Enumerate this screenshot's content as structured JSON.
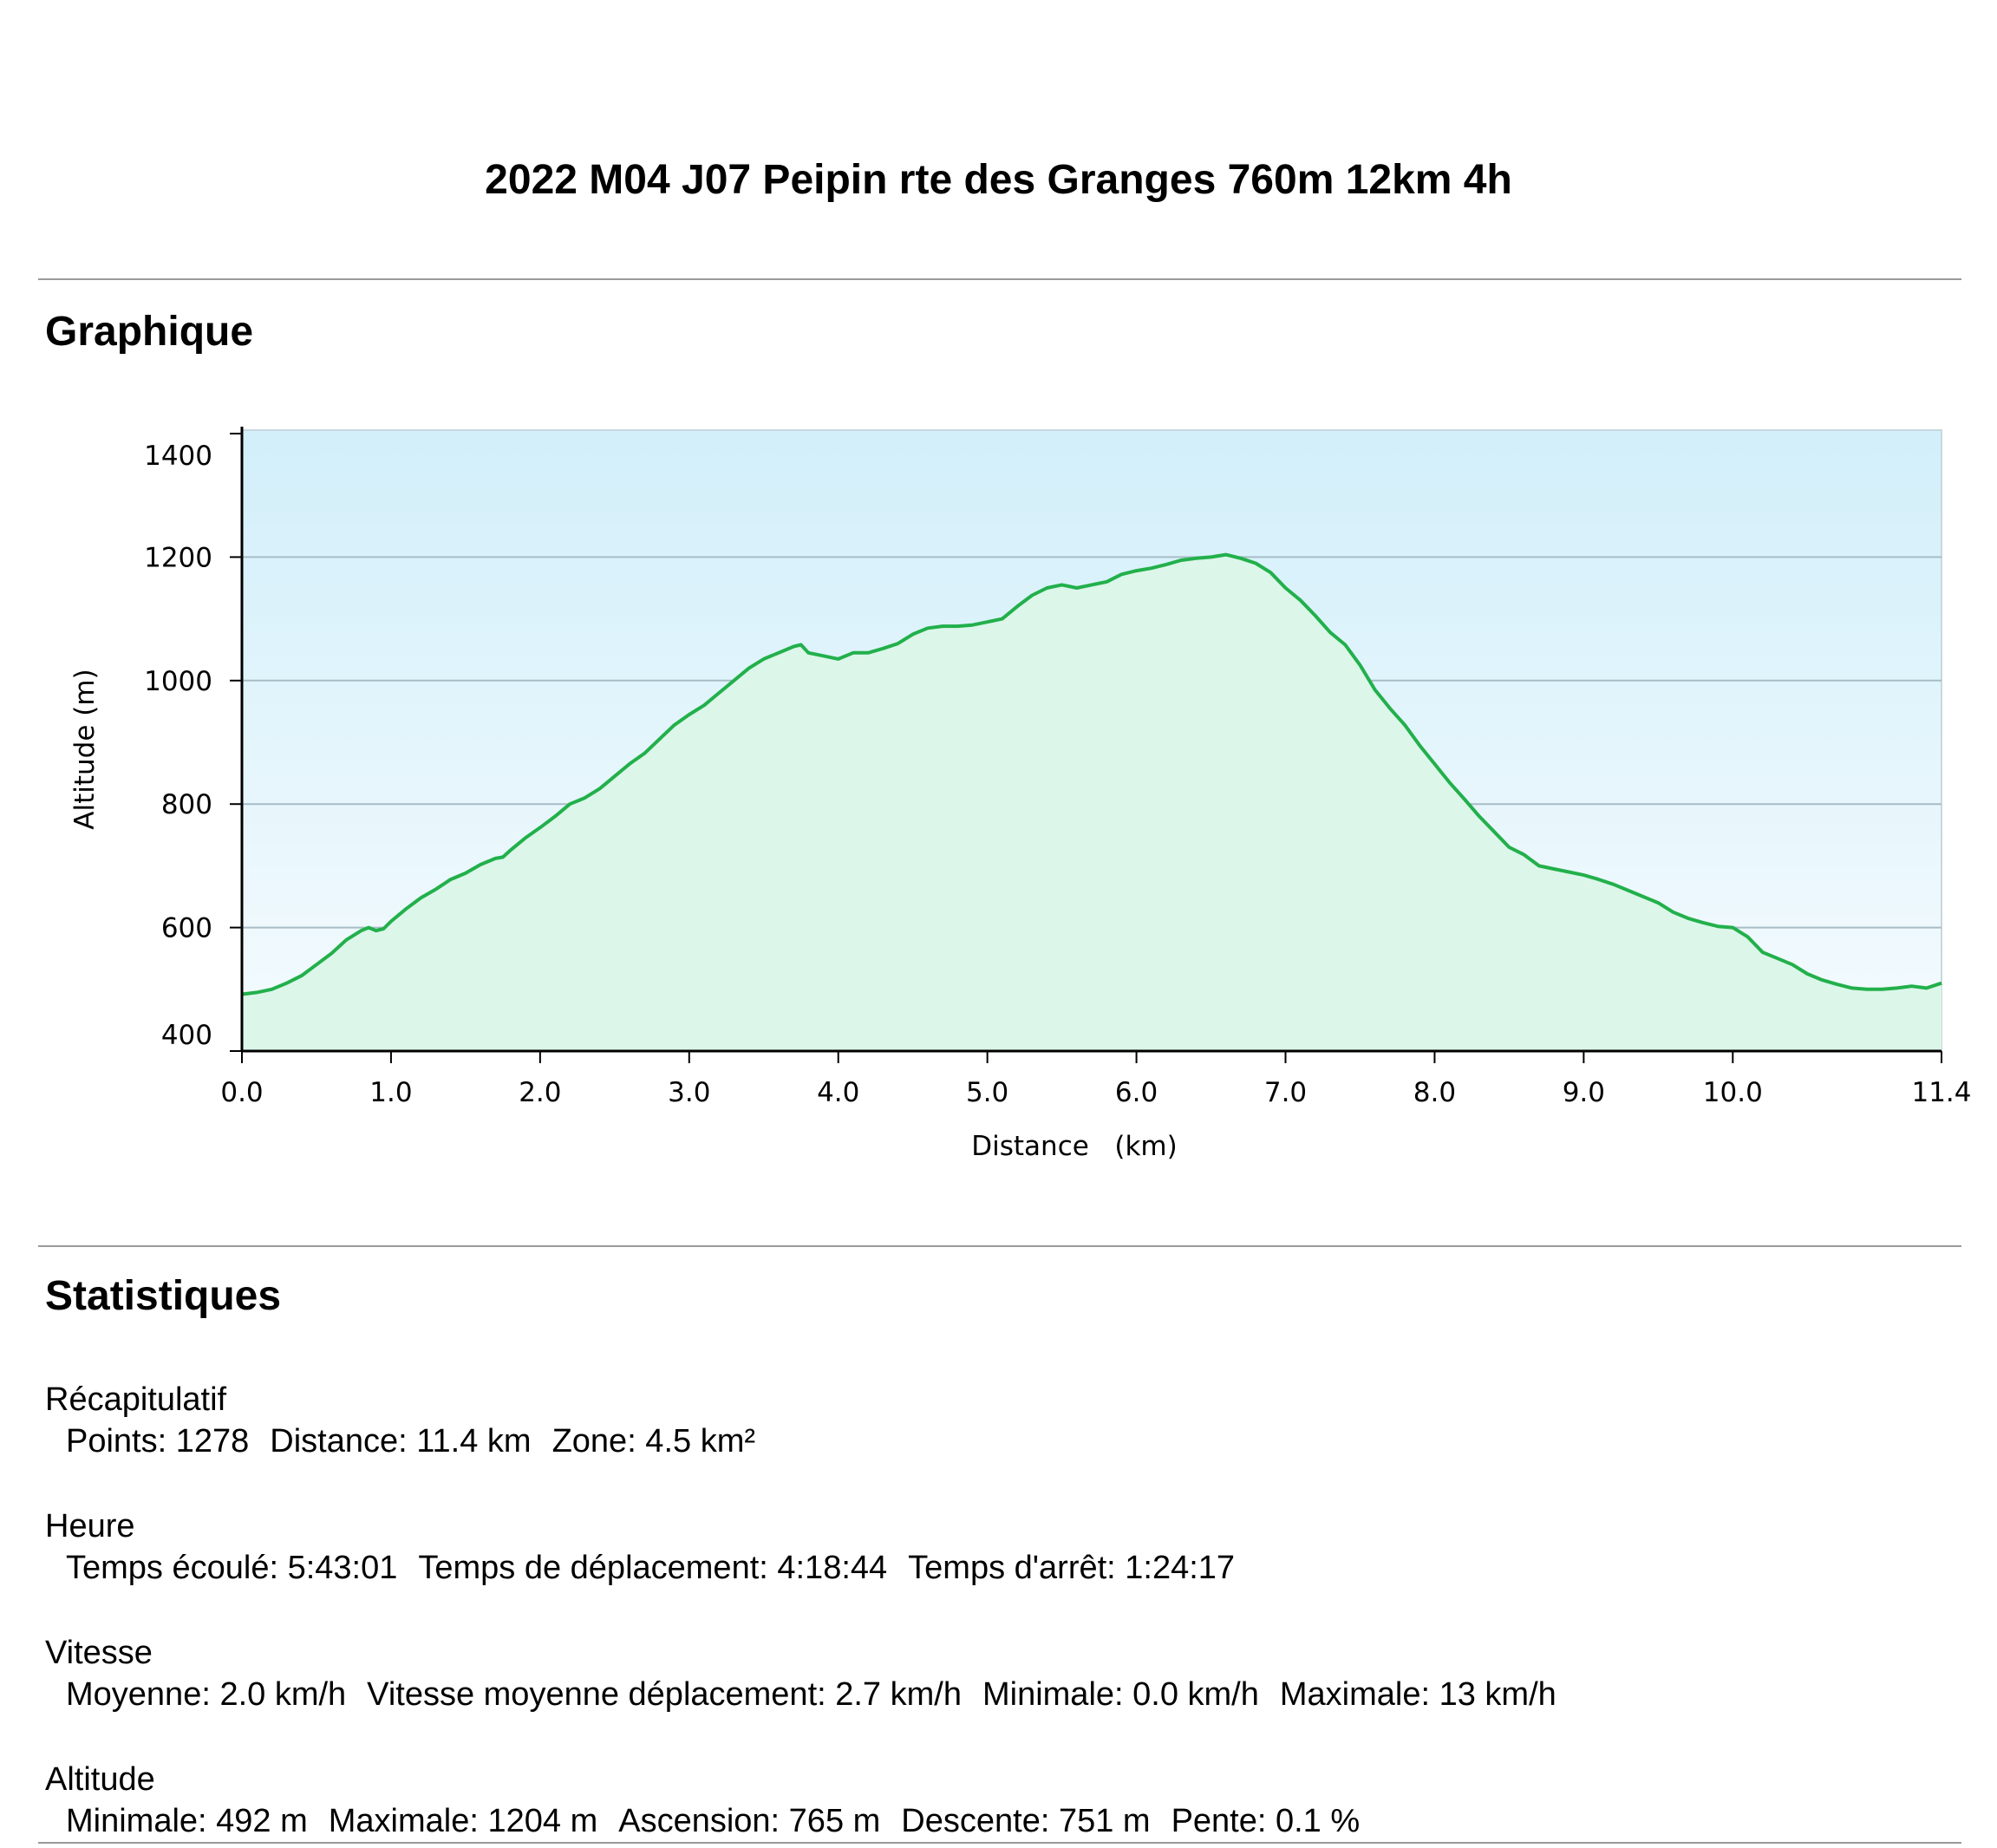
{
  "title": "2022 M04 J07 Peipin rte des Granges 760m 12km 4h",
  "sections": {
    "chart_heading": "Graphique",
    "stats_heading": "Statistiques"
  },
  "colors": {
    "line": "#22b04b",
    "area_fill": "#dcf6ea",
    "sky_top": "#d2effa",
    "sky_bottom": "#f5fbfe",
    "grid": "#a8bcc6"
  },
  "chart_data": {
    "type": "area",
    "title": "",
    "xlabel": "Distance   (km)",
    "ylabel": "Altitude (m)",
    "xlim": [
      0,
      11.4
    ],
    "ylim": [
      400,
      1400
    ],
    "x_ticks": [
      "0.0",
      "1.0",
      "2.0",
      "3.0",
      "4.0",
      "5.0",
      "6.0",
      "7.0",
      "8.0",
      "9.0",
      "10.0",
      "11.4"
    ],
    "y_ticks": [
      "400",
      "600",
      "800",
      "1000",
      "1200",
      "1400"
    ],
    "grid": true,
    "series": [
      {
        "x": [
          0.0,
          0.1,
          0.2,
          0.3,
          0.4,
          0.5,
          0.6,
          0.7,
          0.8,
          0.85,
          0.9,
          0.95,
          1.0,
          1.1,
          1.2,
          1.3,
          1.4,
          1.5,
          1.6,
          1.7,
          1.75,
          1.8,
          1.9,
          2.0,
          2.1,
          2.2,
          2.3,
          2.4,
          2.5,
          2.6,
          2.7,
          2.8,
          2.9,
          3.0,
          3.1,
          3.2,
          3.3,
          3.4,
          3.5,
          3.6,
          3.7,
          3.75,
          3.8,
          3.9,
          4.0,
          4.1,
          4.2,
          4.3,
          4.4,
          4.5,
          4.6,
          4.7,
          4.8,
          4.9,
          5.0,
          5.1,
          5.2,
          5.3,
          5.4,
          5.5,
          5.6,
          5.7,
          5.8,
          5.9,
          6.0,
          6.1,
          6.2,
          6.3,
          6.4,
          6.5,
          6.6,
          6.7,
          6.8,
          6.9,
          7.0,
          7.1,
          7.2,
          7.3,
          7.4,
          7.5,
          7.6,
          7.7,
          7.8,
          7.9,
          8.0,
          8.1,
          8.2,
          8.3,
          8.4,
          8.5,
          8.6,
          8.7,
          8.8,
          8.9,
          9.0,
          9.1,
          9.2,
          9.3,
          9.4,
          9.5,
          9.6,
          9.7,
          9.8,
          9.9,
          10.0,
          10.1,
          10.2,
          10.3,
          10.4,
          10.5,
          10.6,
          10.7,
          10.8,
          10.9,
          11.0,
          11.1,
          11.2,
          11.3,
          11.4
        ],
        "y": [
          492,
          495,
          500,
          510,
          522,
          540,
          558,
          580,
          595,
          600,
          595,
          598,
          610,
          630,
          648,
          662,
          678,
          688,
          702,
          712,
          714,
          725,
          745,
          762,
          780,
          800,
          810,
          825,
          845,
          865,
          882,
          905,
          928,
          945,
          960,
          980,
          1000,
          1020,
          1035,
          1045,
          1055,
          1058,
          1045,
          1040,
          1035,
          1045,
          1045,
          1052,
          1060,
          1075,
          1085,
          1088,
          1088,
          1090,
          1095,
          1100,
          1120,
          1138,
          1150,
          1155,
          1150,
          1155,
          1160,
          1172,
          1178,
          1182,
          1188,
          1195,
          1198,
          1200,
          1204,
          1198,
          1190,
          1175,
          1150,
          1130,
          1105,
          1078,
          1058,
          1025,
          985,
          955,
          928,
          895,
          865,
          835,
          808,
          780,
          755,
          730,
          718,
          700,
          695,
          690,
          685,
          678,
          670,
          660,
          650,
          640,
          625,
          615,
          608,
          602,
          600,
          585,
          560,
          550,
          540,
          525,
          515,
          508,
          502,
          500,
          500,
          502,
          505,
          502,
          510
        ]
      }
    ]
  },
  "stats": {
    "groups": [
      {
        "title": "Récapitulatif",
        "items": [
          "Points: 1278",
          "Distance: 11.4 km",
          "Zone: 4.5 km²"
        ]
      },
      {
        "title": "Heure",
        "items": [
          "Temps écoulé: 5:43:01",
          "Temps de déplacement: 4:18:44",
          "Temps d'arrêt: 1:24:17"
        ]
      },
      {
        "title": "Vitesse",
        "items": [
          "Moyenne: 2.0 km/h",
          "Vitesse moyenne déplacement: 2.7 km/h",
          "Minimale: 0.0 km/h",
          "Maximale: 13 km/h"
        ]
      },
      {
        "title": "Altitude",
        "items": [
          "Minimale: 492 m",
          "Maximale: 1204 m",
          "Ascension: 765 m",
          "Descente: 751 m",
          "Pente: 0.1 %"
        ]
      }
    ]
  }
}
